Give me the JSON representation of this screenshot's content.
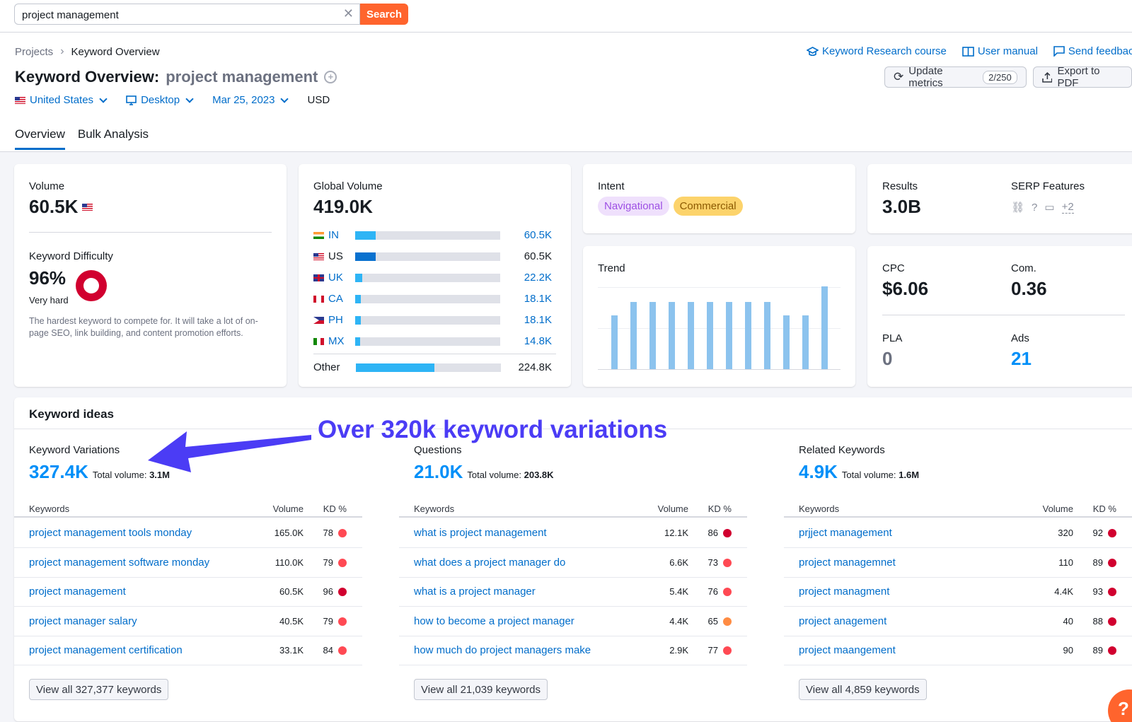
{
  "search": {
    "value": "project management",
    "button": "Search"
  },
  "breadcrumb": {
    "root": "Projects",
    "current": "Keyword Overview"
  },
  "top_links": [
    "Keyword Research course",
    "User manual",
    "Send feedback"
  ],
  "title": {
    "prefix": "Keyword Overview:",
    "keyword": "project management"
  },
  "actions": {
    "update_label": "Update metrics",
    "update_badge": "2/250",
    "export_label": "Export to PDF"
  },
  "filters": {
    "country": "United States",
    "device": "Desktop",
    "date": "Mar 25, 2023",
    "currency": "USD"
  },
  "tabs": [
    "Overview",
    "Bulk Analysis"
  ],
  "volume": {
    "label": "Volume",
    "value": "60.5K"
  },
  "kd": {
    "label": "Keyword Difficulty",
    "value": "96%",
    "level": "Very hard",
    "desc": "The hardest keyword to compete for. It will take a lot of on-page SEO, link building, and content promotion efforts.",
    "color": "#d1002f"
  },
  "global_volume": {
    "label": "Global Volume",
    "value": "419.0K",
    "rows": [
      {
        "code": "IN",
        "value": "60.5K",
        "share": 0.14,
        "linked": true
      },
      {
        "code": "US",
        "value": "60.5K",
        "share": 0.14,
        "linked": false
      },
      {
        "code": "UK",
        "value": "22.2K",
        "share": 0.05,
        "linked": true
      },
      {
        "code": "CA",
        "value": "18.1K",
        "share": 0.04,
        "linked": true
      },
      {
        "code": "PH",
        "value": "18.1K",
        "share": 0.04,
        "linked": true
      },
      {
        "code": "MX",
        "value": "14.8K",
        "share": 0.035,
        "linked": true
      }
    ],
    "other_label": "Other",
    "other_value": "224.8K",
    "other_share": 0.54
  },
  "intent": {
    "label": "Intent",
    "tags": [
      "Navigational",
      "Commercial"
    ]
  },
  "trend": {
    "label": "Trend",
    "values": [
      0.65,
      0.81,
      0.81,
      0.81,
      0.81,
      0.81,
      0.81,
      0.81,
      0.81,
      0.65,
      0.65,
      1.0
    ]
  },
  "results": {
    "label": "Results",
    "value": "3.0B"
  },
  "serp": {
    "label": "SERP Features",
    "more": "+2"
  },
  "cpc": {
    "label": "CPC",
    "value": "$6.06"
  },
  "com": {
    "label": "Com.",
    "value": "0.36"
  },
  "pla": {
    "label": "PLA",
    "value": "0"
  },
  "ads": {
    "label": "Ads",
    "value": "21"
  },
  "ideas": {
    "title": "Keyword ideas",
    "annotation": "Over 320k keyword variations",
    "columns": [
      {
        "title": "Keyword Variations",
        "count": "327.4K",
        "total_label": "Total volume:",
        "total": "3.1M",
        "head": {
          "kw": "Keywords",
          "vol": "Volume",
          "kd": "KD %"
        },
        "rows": [
          {
            "kw": "project management tools monday",
            "vol": "165.0K",
            "kd": "78",
            "color": "#ff4953"
          },
          {
            "kw": "project management software monday",
            "vol": "110.0K",
            "kd": "79",
            "color": "#ff4953"
          },
          {
            "kw": "project management",
            "vol": "60.5K",
            "kd": "96",
            "color": "#d1002f"
          },
          {
            "kw": "project manager salary",
            "vol": "40.5K",
            "kd": "79",
            "color": "#ff4953"
          },
          {
            "kw": "project management certification",
            "vol": "33.1K",
            "kd": "84",
            "color": "#ff4953"
          }
        ],
        "view_all": "View all 327,377 keywords"
      },
      {
        "title": "Questions",
        "count": "21.0K",
        "total_label": "Total volume:",
        "total": "203.8K",
        "head": {
          "kw": "Keywords",
          "vol": "Volume",
          "kd": "KD %"
        },
        "rows": [
          {
            "kw": "what is project management",
            "vol": "12.1K",
            "kd": "86",
            "color": "#d1002f"
          },
          {
            "kw": "what does a project manager do",
            "vol": "6.6K",
            "kd": "73",
            "color": "#ff4953"
          },
          {
            "kw": "what is a project manager",
            "vol": "5.4K",
            "kd": "76",
            "color": "#ff4953"
          },
          {
            "kw": "how to become a project manager",
            "vol": "4.4K",
            "kd": "65",
            "color": "#ff8c43"
          },
          {
            "kw": "how much do project managers make",
            "vol": "2.9K",
            "kd": "77",
            "color": "#ff4953"
          }
        ],
        "view_all": "View all 21,039 keywords"
      },
      {
        "title": "Related Keywords",
        "count": "4.9K",
        "total_label": "Total volume:",
        "total": "1.6M",
        "head": {
          "kw": "Keywords",
          "vol": "Volume",
          "kd": "KD %"
        },
        "rows": [
          {
            "kw": "prjject management",
            "vol": "320",
            "kd": "92",
            "color": "#d1002f"
          },
          {
            "kw": "project managemnet",
            "vol": "110",
            "kd": "89",
            "color": "#d1002f"
          },
          {
            "kw": "project managment",
            "vol": "4.4K",
            "kd": "93",
            "color": "#d1002f"
          },
          {
            "kw": "project anagement",
            "vol": "40",
            "kd": "88",
            "color": "#d1002f"
          },
          {
            "kw": "project maangement",
            "vol": "90",
            "kd": "89",
            "color": "#d1002f"
          }
        ],
        "view_all": "View all 4,859 keywords"
      }
    ]
  },
  "help": "?"
}
